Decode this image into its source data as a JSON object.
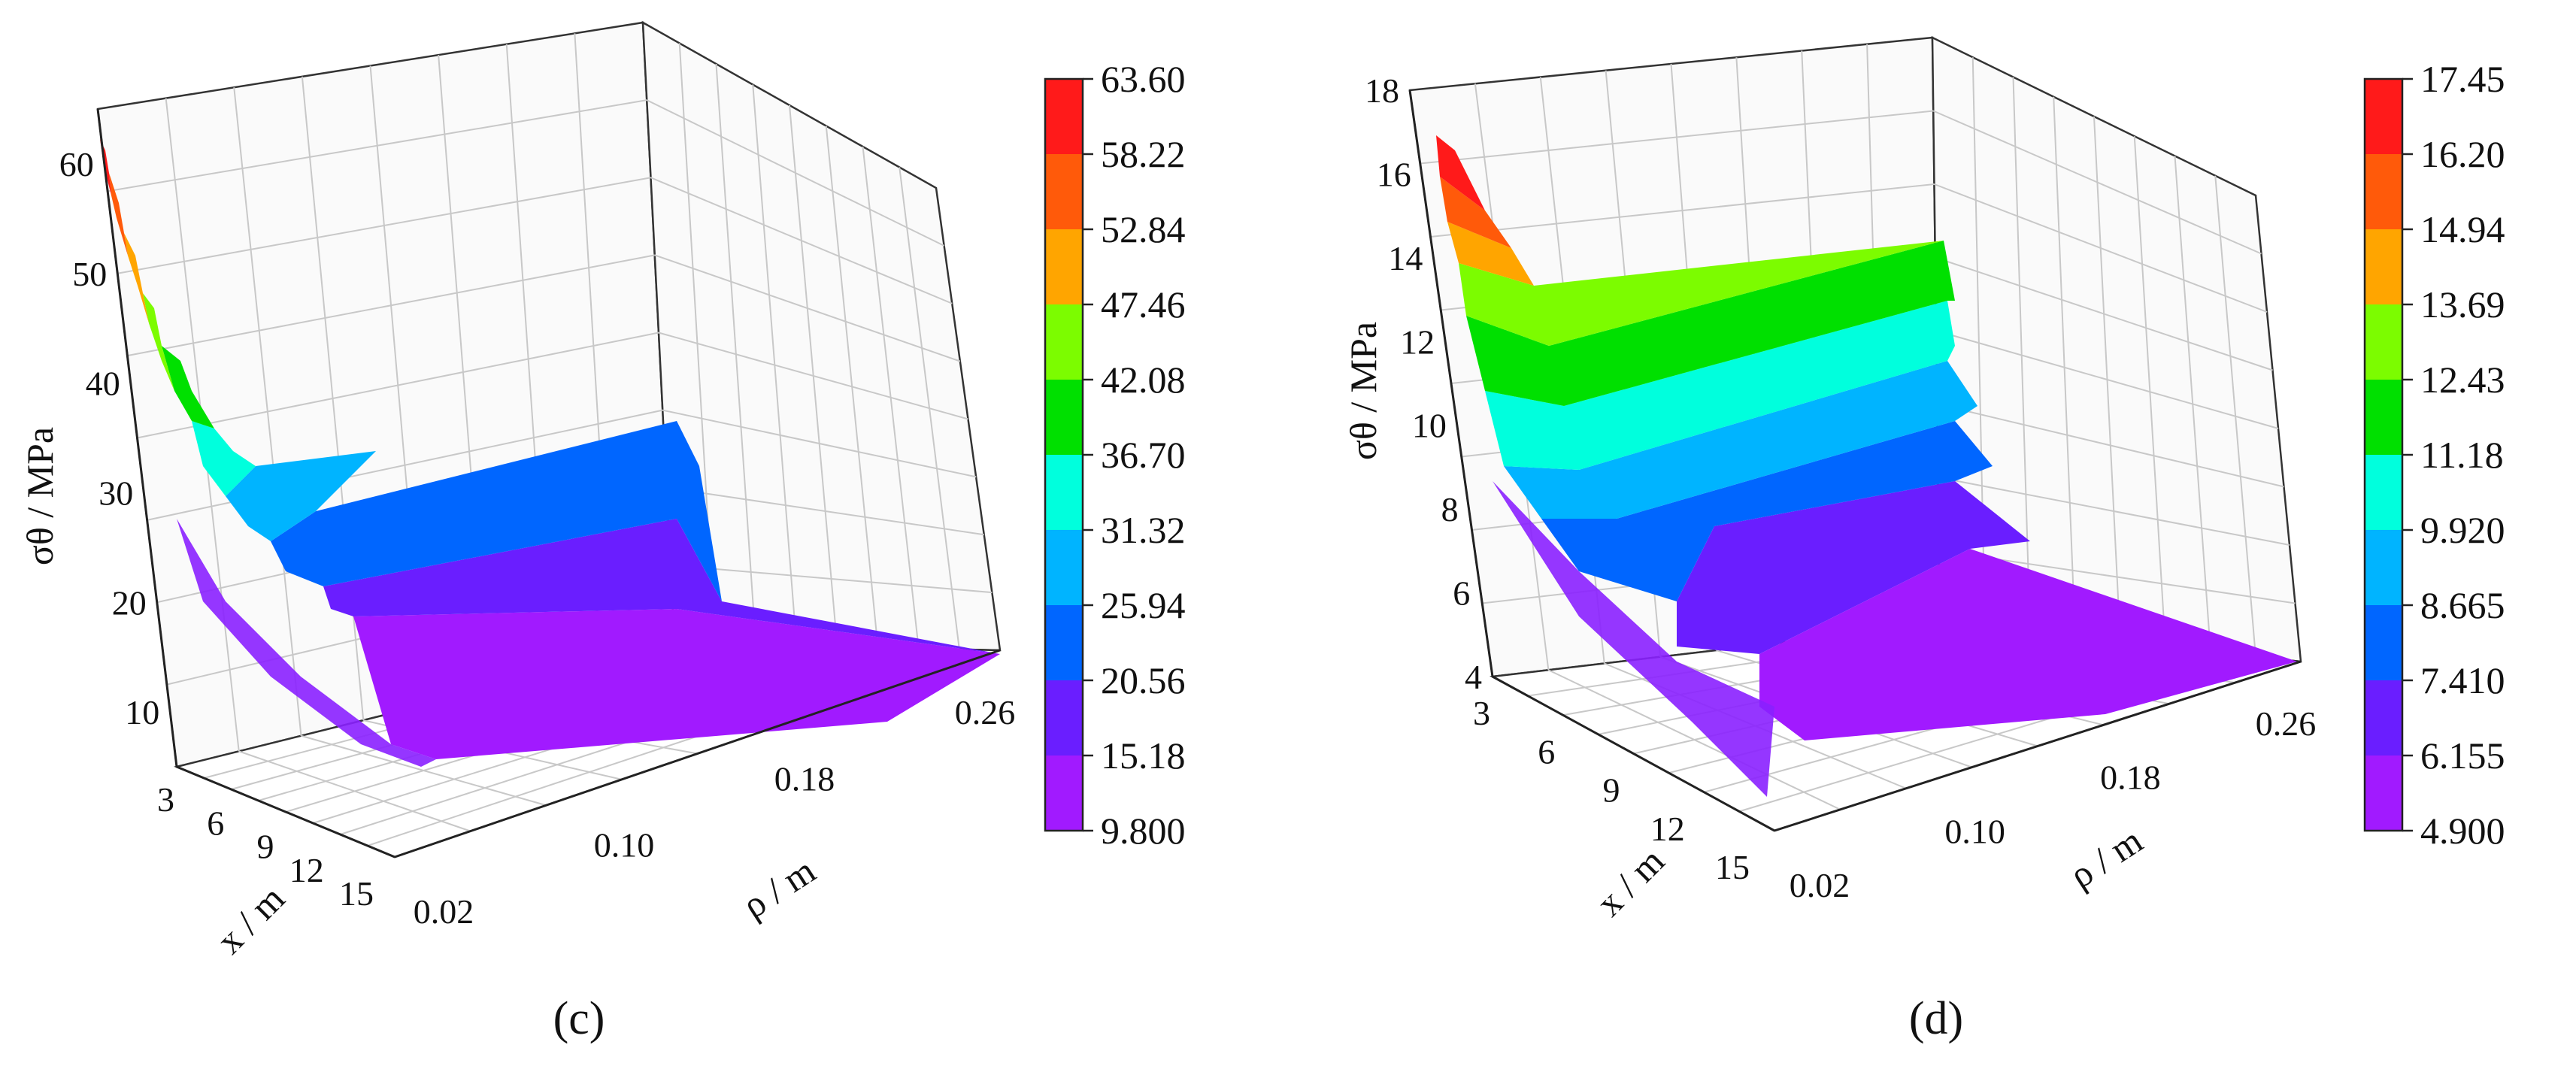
{
  "chart_data": [
    {
      "type": "surface3d",
      "panel_label": "c",
      "zlabel": "σθ / MPa",
      "xlabel": "x / m",
      "ylabel": "ρ / m",
      "z_ticks": [
        "10",
        "20",
        "30",
        "40",
        "50",
        "60"
      ],
      "x_ticks": [
        "3",
        "6",
        "9",
        "12",
        "15"
      ],
      "rho_ticks": [
        "0.02",
        "0.10",
        "0.18",
        "0.26"
      ],
      "zlim": [
        5,
        65
      ],
      "colorbar_levels": [
        "63.60",
        "58.22",
        "52.84",
        "47.46",
        "42.08",
        "36.70",
        "31.32",
        "25.94",
        "20.56",
        "15.18",
        "9.800"
      ],
      "colorbar_colors": [
        "#ff1a1a",
        "#ff5a0a",
        "#ffa500",
        "#7cfc00",
        "#00e000",
        "#00ffdd",
        "#00b4ff",
        "#0066ff",
        "#6a1eff",
        "#a11aff"
      ],
      "surface_summary": {
        "peak_value": 63.6,
        "peak_location": {
          "x": 0,
          "rho": 0.02
        },
        "far_field_value": 9.8
      }
    },
    {
      "type": "surface3d",
      "panel_label": "d",
      "zlabel": "σθ / MPa",
      "xlabel": "x / m",
      "ylabel": "ρ / m",
      "z_ticks": [
        "4",
        "6",
        "8",
        "10",
        "12",
        "14",
        "16",
        "18"
      ],
      "x_ticks": [
        "3",
        "6",
        "9",
        "12",
        "15"
      ],
      "rho_ticks": [
        "0.02",
        "0.10",
        "0.18",
        "0.26"
      ],
      "zlim": [
        4,
        18
      ],
      "colorbar_levels": [
        "17.45",
        "16.20",
        "14.94",
        "13.69",
        "12.43",
        "11.18",
        "9.920",
        "8.665",
        "7.410",
        "6.155",
        "4.900"
      ],
      "colorbar_colors": [
        "#ff1a1a",
        "#ff5a0a",
        "#ffa500",
        "#7cfc00",
        "#00e000",
        "#00ffdd",
        "#00b4ff",
        "#0066ff",
        "#6a1eff",
        "#a11aff"
      ],
      "surface_summary": {
        "peak_value": 17.45,
        "peak_location": {
          "x": 0,
          "rho": 0.02
        },
        "far_field_value": 4.9
      }
    }
  ],
  "captions": {
    "c": "(c)",
    "d": "(d)"
  }
}
